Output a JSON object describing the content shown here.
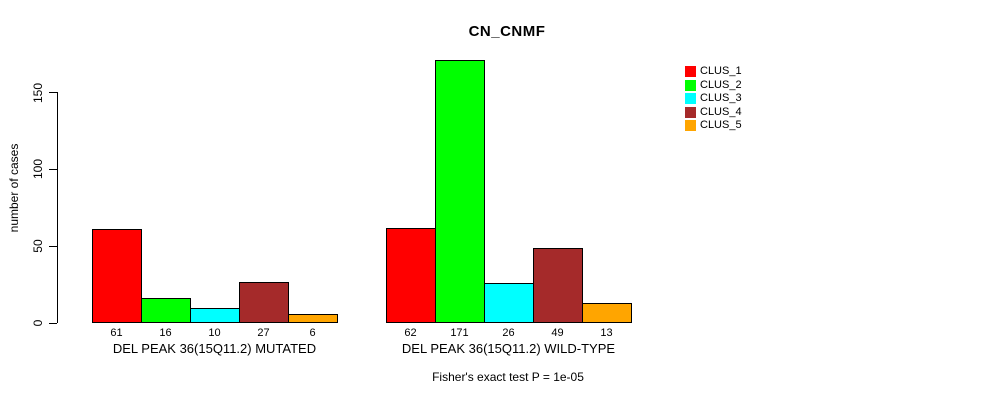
{
  "title": "CN_CNMF",
  "chart_data": {
    "type": "bar",
    "title": "CN_CNMF",
    "ylabel": "number of cases",
    "xlabel": "",
    "yticks": [
      0,
      50,
      100,
      150
    ],
    "ylim": [
      0,
      175
    ],
    "grid": false,
    "legend_position": "top-right",
    "series_names": [
      "CLUS_1",
      "CLUS_2",
      "CLUS_3",
      "CLUS_4",
      "CLUS_5"
    ],
    "series_colors": [
      "#ff0000",
      "#00ff00",
      "#00ffff",
      "#a52a2a",
      "#ffa500"
    ],
    "groups": [
      {
        "label": "DEL PEAK 36(15Q11.2) MUTATED",
        "values": [
          61,
          16,
          10,
          27,
          6
        ]
      },
      {
        "label": "DEL PEAK 36(15Q11.2) WILD-TYPE",
        "values": [
          62,
          171,
          26,
          49,
          13
        ]
      }
    ],
    "annotation": "Fisher's exact test P = 1e-05"
  }
}
